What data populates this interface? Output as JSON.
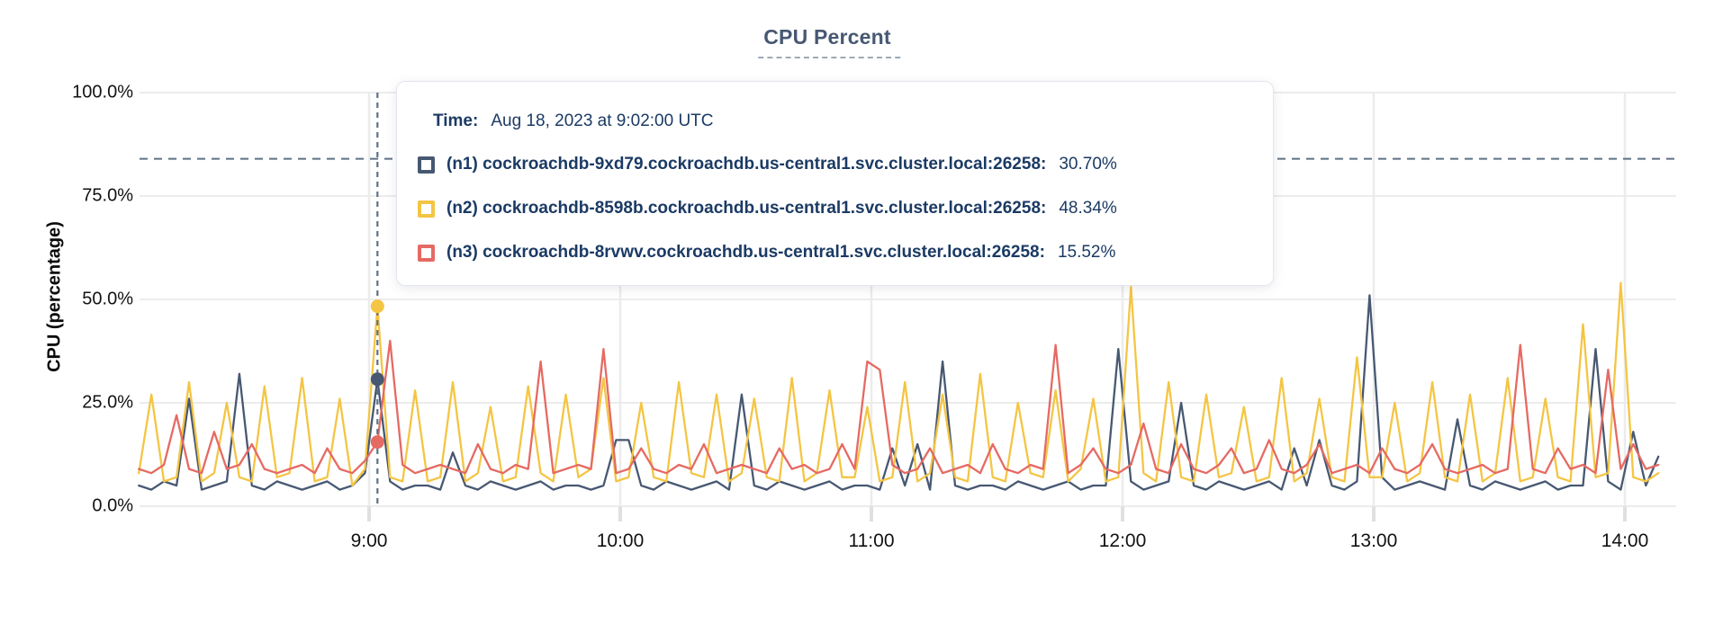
{
  "title": "CPU Percent",
  "y_axis_title": "CPU (percentage)",
  "tooltip": {
    "time_label": "Time:",
    "time_value": "Aug 18, 2023 at 9:02:00 UTC",
    "rows": [
      {
        "name": "(n1) cockroachdb-9xd79.cockroachdb.us-central1.svc.cluster.local:26258:",
        "value": "30.70%",
        "color": "#475872"
      },
      {
        "name": "(n2) cockroachdb-8598b.cockroachdb.us-central1.svc.cluster.local:26258:",
        "value": "48.34%",
        "color": "#F4C544"
      },
      {
        "name": "(n3) cockroachdb-8rvwv.cockroachdb.us-central1.svc.cluster.local:26258:",
        "value": "15.52%",
        "color": "#E56A63"
      }
    ]
  },
  "colors": {
    "title": "#475872",
    "grid": "#ececec",
    "dashed_guides": "#5f7186",
    "tooltip_text": "#1b3a64"
  },
  "chart_data": {
    "type": "line",
    "title": "CPU Percent",
    "ylabel": "CPU (percentage)",
    "ylim": [
      0,
      100
    ],
    "grid": true,
    "y_ticks": [
      {
        "label": "0.0%",
        "value": 0
      },
      {
        "label": "25.0%",
        "value": 25
      },
      {
        "label": "50.0%",
        "value": 50
      },
      {
        "label": "75.0%",
        "value": 75
      },
      {
        "label": "100.0%",
        "value": 100
      }
    ],
    "x_unit": "minutes since midnight UTC",
    "x_start_minute": 485,
    "x_step_minutes": 3,
    "x_ticks": [
      {
        "label": "9:00",
        "minute": 540
      },
      {
        "label": "10:00",
        "minute": 600
      },
      {
        "label": "11:00",
        "minute": 660
      },
      {
        "label": "12:00",
        "minute": 720
      },
      {
        "label": "13:00",
        "minute": 780
      },
      {
        "label": "14:00",
        "minute": 840
      }
    ],
    "threshold_percent": 84,
    "hover": {
      "minute": 542,
      "time": "Aug 18, 2023 at 9:02:00 UTC",
      "values": [
        30.7,
        48.34,
        15.52
      ]
    },
    "series": [
      {
        "name": "(n1) cockroachdb-9xd79.cockroachdb.us-central1.svc.cluster.local:26258",
        "color": "#475872",
        "values": [
          5,
          4,
          6,
          5,
          26,
          4,
          5,
          6,
          32,
          5,
          4,
          6,
          5,
          4,
          5,
          6,
          4,
          5,
          8,
          30.7,
          6,
          4,
          5,
          5,
          4,
          13,
          5,
          4,
          6,
          5,
          4,
          5,
          6,
          4,
          5,
          5,
          4,
          5,
          16,
          16,
          5,
          4,
          6,
          5,
          4,
          5,
          6,
          4,
          27,
          5,
          4,
          6,
          5,
          4,
          5,
          6,
          4,
          5,
          5,
          4,
          14,
          5,
          15,
          4,
          35,
          5,
          4,
          5,
          5,
          4,
          6,
          5,
          4,
          5,
          6,
          4,
          5,
          5,
          38,
          6,
          4,
          5,
          6,
          25,
          5,
          4,
          6,
          5,
          4,
          5,
          6,
          4,
          14,
          5,
          16,
          5,
          4,
          6,
          51,
          7,
          4,
          5,
          6,
          5,
          4,
          21,
          5,
          4,
          6,
          5,
          4,
          5,
          6,
          4,
          5,
          5,
          38,
          6,
          4,
          18,
          5,
          12
        ]
      },
      {
        "name": "(n2) cockroachdb-8598b.cockroachdb.us-central1.svc.cluster.local:26258",
        "color": "#F4C544",
        "values": [
          8,
          27,
          6,
          7,
          30,
          6,
          8,
          25,
          7,
          6,
          29,
          7,
          8,
          31,
          6,
          7,
          26,
          5,
          9,
          48.34,
          7,
          6,
          28,
          6,
          7,
          30,
          6,
          8,
          24,
          6,
          7,
          29,
          8,
          6,
          27,
          7,
          9,
          31,
          6,
          7,
          25,
          7,
          6,
          30,
          8,
          7,
          27,
          6,
          8,
          26,
          7,
          6,
          31,
          6,
          8,
          28,
          7,
          7,
          24,
          6,
          7,
          30,
          6,
          8,
          27,
          7,
          6,
          32,
          7,
          6,
          25,
          8,
          7,
          28,
          6,
          9,
          26,
          6,
          7,
          53,
          8,
          6,
          30,
          7,
          6,
          27,
          7,
          8,
          24,
          6,
          7,
          31,
          6,
          8,
          26,
          7,
          6,
          36,
          7,
          7,
          25,
          6,
          8,
          30,
          7,
          6,
          27,
          6,
          8,
          31,
          6,
          7,
          26,
          7,
          6,
          44,
          7,
          8,
          54,
          7,
          6,
          8
        ]
      },
      {
        "name": "(n3) cockroachdb-8rvwv.cockroachdb.us-central1.svc.cluster.local:26258",
        "color": "#E56A63",
        "values": [
          9,
          8,
          10,
          22,
          9,
          8,
          18,
          9,
          10,
          15,
          9,
          8,
          9,
          10,
          8,
          14,
          9,
          8,
          11,
          15.52,
          40,
          10,
          8,
          9,
          10,
          9,
          8,
          15,
          9,
          8,
          10,
          9,
          35,
          8,
          9,
          10,
          9,
          38,
          8,
          9,
          14,
          9,
          8,
          10,
          9,
          15,
          8,
          9,
          10,
          9,
          8,
          14,
          9,
          10,
          8,
          9,
          15,
          9,
          35,
          33,
          10,
          8,
          9,
          14,
          8,
          9,
          10,
          8,
          15,
          9,
          8,
          10,
          9,
          39,
          8,
          10,
          14,
          9,
          8,
          10,
          20,
          9,
          8,
          15,
          9,
          8,
          10,
          14,
          8,
          9,
          16,
          9,
          8,
          10,
          15,
          8,
          9,
          10,
          8,
          14,
          9,
          8,
          10,
          15,
          9,
          8,
          9,
          10,
          8,
          9,
          39,
          9,
          8,
          14,
          9,
          10,
          8,
          33,
          9,
          15,
          9,
          10
        ]
      }
    ]
  }
}
